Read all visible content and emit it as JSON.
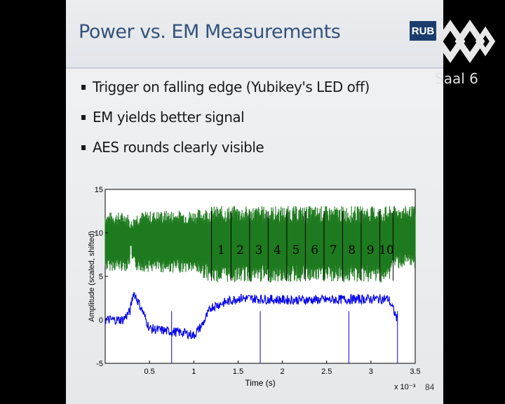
{
  "slide": {
    "title": "Power vs. EM Measurements",
    "logo_text": "RUB",
    "bullets": [
      "Trigger on falling edge (Yubikey's LED off)",
      "EM yields better signal",
      "AES rounds clearly visible"
    ],
    "page_number": "84"
  },
  "overlay": {
    "channel_label": "Saal 6",
    "logo_icon": "ccc-hexagon-logo-icon"
  },
  "chart_data": {
    "type": "line",
    "xlabel": "Time (s)",
    "ylabel": "Amplitude (scaled, shifted)",
    "x_multiplier_label": "x 10⁻³",
    "xlim": [
      0,
      3.5
    ],
    "ylim": [
      -5,
      15
    ],
    "x_ticks": [
      "0.5",
      "1",
      "1.5",
      "2",
      "2.5",
      "3",
      "3.5"
    ],
    "x_tick_values": [
      0.5,
      1,
      1.5,
      2,
      2.5,
      3,
      3.5
    ],
    "y_ticks": [
      "-5",
      "0",
      "5",
      "10",
      "15"
    ],
    "y_tick_values": [
      -5,
      0,
      5,
      10,
      15
    ],
    "colors": {
      "em": "#1e7a1e",
      "power": "#0000ee",
      "markers": "#000000"
    },
    "series": [
      {
        "trace": "em",
        "x": [
          0.0,
          0.25,
          0.28,
          0.3,
          0.35,
          0.6,
          1.0,
          1.2,
          1.5,
          2.0,
          2.5,
          3.0,
          3.2,
          3.25,
          3.35,
          3.5
        ],
        "y_center": [
          9.0,
          9.0,
          9.0,
          9.0,
          9.0,
          9.0,
          9.0,
          8.7,
          8.7,
          8.7,
          8.7,
          8.7,
          8.7,
          9.5,
          9.5,
          9.5
        ],
        "y_spread": [
          3.4,
          3.4,
          2.5,
          2.5,
          3.4,
          3.6,
          3.6,
          4.4,
          4.4,
          4.4,
          4.4,
          4.4,
          4.4,
          3.6,
          3.6,
          3.6
        ]
      },
      {
        "trace": "power",
        "x": [
          0.0,
          0.2,
          0.28,
          0.32,
          0.4,
          0.5,
          0.7,
          0.9,
          1.0,
          1.1,
          1.2,
          1.5,
          2.0,
          2.5,
          3.0,
          3.2,
          3.3
        ],
        "y": [
          0.0,
          0.0,
          1.0,
          3.2,
          1.5,
          -1.0,
          -1.3,
          -1.5,
          -1.8,
          -0.5,
          1.5,
          2.5,
          2.3,
          2.3,
          2.4,
          2.4,
          0.0
        ]
      }
    ],
    "spikes": [
      {
        "x": 0.75,
        "y": -5
      },
      {
        "x": 1.75,
        "y": -5
      },
      {
        "x": 2.75,
        "y": -5
      },
      {
        "x": 3.3,
        "y": -5
      }
    ],
    "rounds": [
      {
        "label": "1",
        "x_start": 1.2,
        "x_end": 1.42
      },
      {
        "label": "2",
        "x_start": 1.42,
        "x_end": 1.63
      },
      {
        "label": "3",
        "x_start": 1.63,
        "x_end": 1.84
      },
      {
        "label": "4",
        "x_start": 1.84,
        "x_end": 2.05
      },
      {
        "label": "5",
        "x_start": 2.05,
        "x_end": 2.26
      },
      {
        "label": "6",
        "x_start": 2.26,
        "x_end": 2.47
      },
      {
        "label": "7",
        "x_start": 2.47,
        "x_end": 2.68
      },
      {
        "label": "8",
        "x_start": 2.68,
        "x_end": 2.89
      },
      {
        "label": "9",
        "x_start": 2.89,
        "x_end": 3.1
      },
      {
        "label": "10",
        "x_start": 3.1,
        "x_end": 3.25
      }
    ]
  }
}
